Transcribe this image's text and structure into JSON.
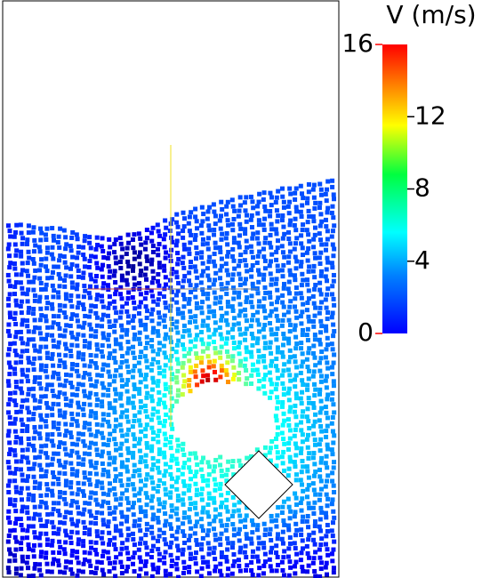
{
  "chart_data": {
    "type": "colorbar",
    "title": "V (m/s)",
    "clim": [
      0,
      16
    ],
    "ticks": [
      0,
      4,
      8,
      12,
      16
    ],
    "colormap": "jet"
  }
}
